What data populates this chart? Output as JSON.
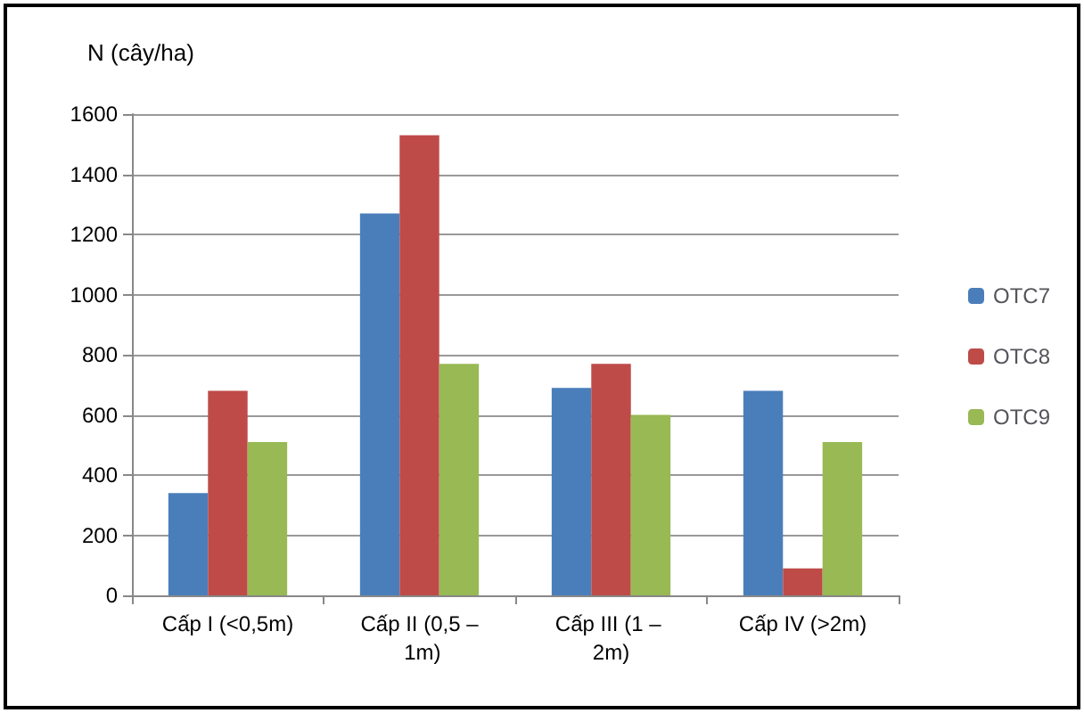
{
  "chart_data": {
    "type": "bar",
    "ylabel": "N (cây/ha)",
    "categories": [
      "Cấp I (<0,5m)",
      "Cấp II (0,5 – 1m)",
      "Cấp III (1 – 2m)",
      "Cấp IV (>2m)"
    ],
    "series": [
      {
        "name": "OTC7",
        "color": "#4a7ebb",
        "values": [
          340,
          1270,
          690,
          680
        ]
      },
      {
        "name": "OTC8",
        "color": "#be4b48",
        "values": [
          680,
          1530,
          770,
          90
        ]
      },
      {
        "name": "OTC9",
        "color": "#98b954",
        "values": [
          510,
          770,
          600,
          510
        ]
      }
    ],
    "ylim": [
      0,
      1600
    ],
    "yticks": [
      0,
      200,
      400,
      600,
      800,
      1000,
      1200,
      1400,
      1600
    ],
    "grid": "y",
    "legend": "right"
  }
}
